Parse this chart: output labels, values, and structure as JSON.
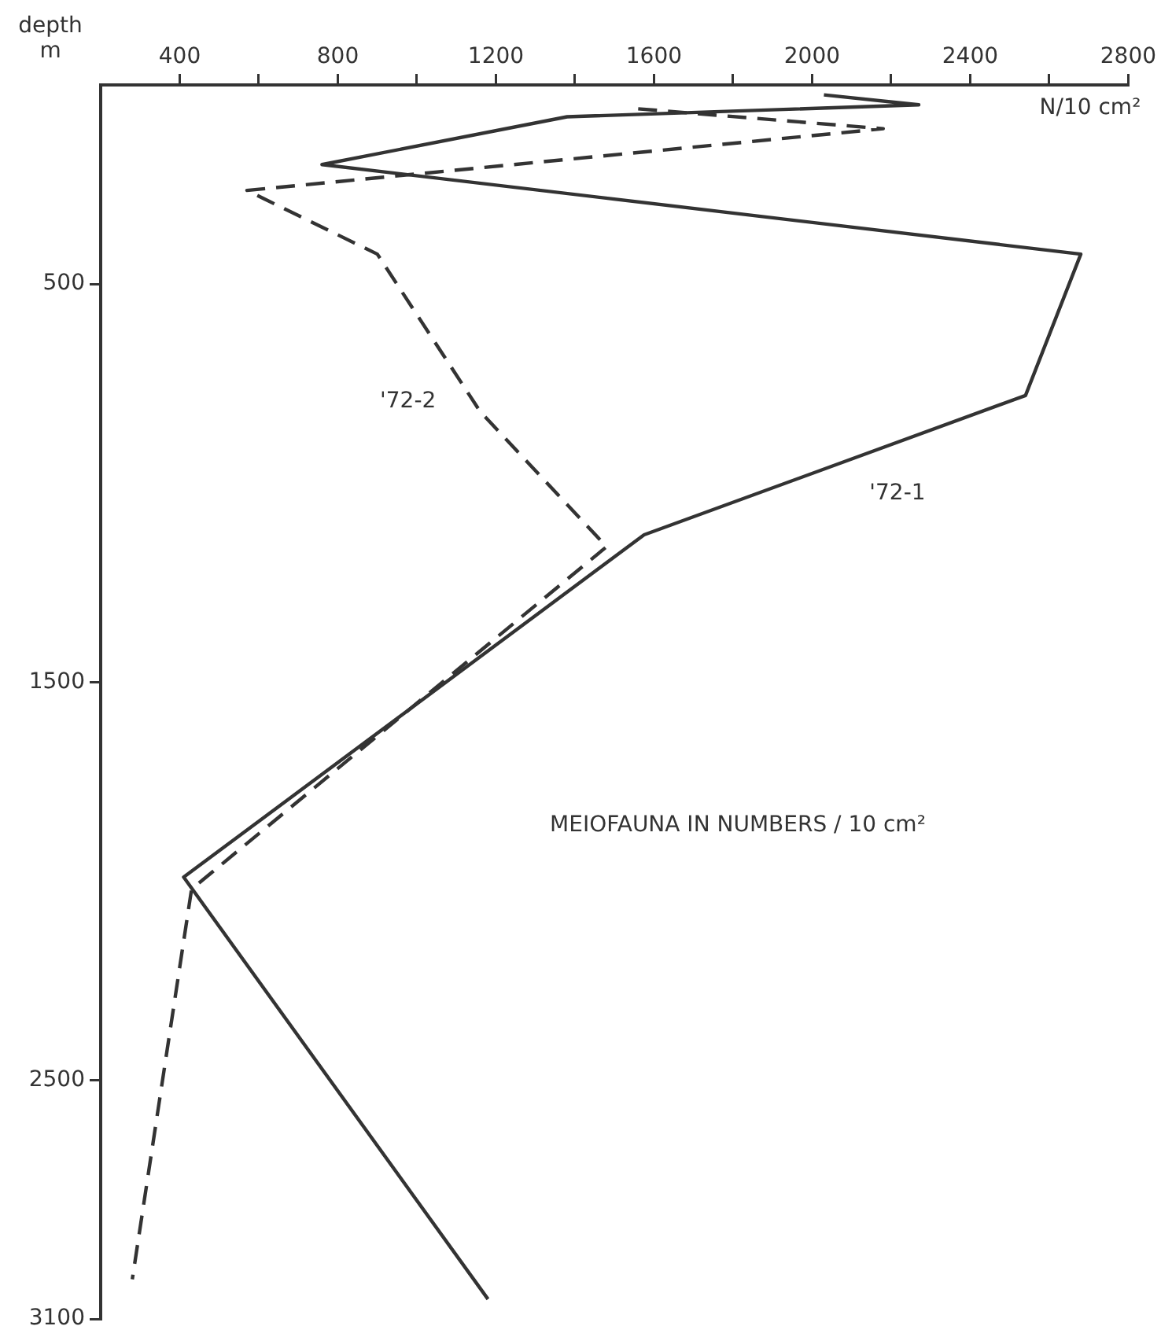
{
  "chart_data": {
    "type": "line",
    "xlabel": "N/10 cm²",
    "ylabel": "depth\nm",
    "annotations": [
      "MEIOFAUNA IN NUMBERS / 10 cm²"
    ],
    "xlim": [
      200,
      2800
    ],
    "xticks": [
      400,
      {
        "value": 600,
        "label": null
      },
      800,
      {
        "value": 1000,
        "label": null
      },
      1200,
      {
        "value": 1400,
        "label": null
      },
      1600,
      {
        "value": 1800,
        "label": null
      },
      2000,
      {
        "value": 2200,
        "label": null
      },
      2400,
      {
        "value": 2600,
        "label": null
      },
      2800
    ],
    "ylim": [
      3100,
      0
    ],
    "yticks": [
      500,
      1500,
      2500,
      3100
    ],
    "grid": false,
    "legend": false,
    "marker": "none",
    "series": [
      {
        "name": "'72-1",
        "color": "#333333",
        "line_style": "solid",
        "x": [
          2030,
          2270,
          1380,
          760,
          2680,
          2540,
          1575,
          410,
          1180
        ],
        "values": [
          25,
          50,
          80,
          200,
          425,
          780,
          1130,
          1990,
          3050
        ]
      },
      {
        "name": "'72-2",
        "color": "#333333",
        "line_style": "dashed",
        "x": [
          1560,
          2180,
          570,
          900,
          1160,
          1480,
          430,
          280
        ],
        "values": [
          60,
          110,
          265,
          425,
          820,
          1160,
          2020,
          3000
        ]
      }
    ]
  }
}
